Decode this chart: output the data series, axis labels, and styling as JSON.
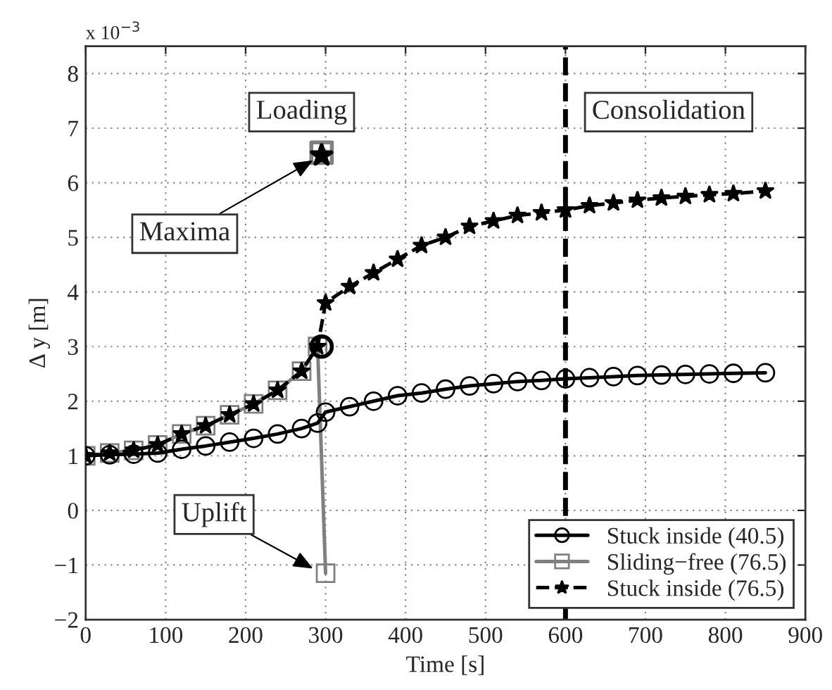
{
  "chart_data": {
    "type": "line",
    "xlabel": "Time [s]",
    "ylabel": "Δ y [m]",
    "xlim": [
      0,
      900
    ],
    "xticks": [
      0,
      100,
      200,
      300,
      400,
      500,
      600,
      700,
      800,
      900
    ],
    "ylim": [
      -2,
      8.5
    ],
    "yticks": [
      -2,
      -1,
      0,
      1,
      2,
      3,
      4,
      5,
      6,
      7,
      8
    ],
    "grid": true,
    "legend": "bottom right",
    "series": [
      {
        "name": "Stuck inside (40.5)",
        "color": "#000000",
        "marker": "circle",
        "line_style": "solid",
        "x": [
          0,
          30,
          60,
          90,
          120,
          150,
          180,
          210,
          240,
          270,
          290,
          300,
          330,
          360,
          390,
          420,
          450,
          480,
          510,
          540,
          570,
          600,
          630,
          660,
          690,
          720,
          750,
          780,
          810,
          850
        ],
        "values": [
          1.0,
          1.02,
          1.03,
          1.05,
          1.12,
          1.18,
          1.25,
          1.32,
          1.4,
          1.5,
          1.6,
          1.8,
          1.9,
          2.0,
          2.1,
          2.15,
          2.22,
          2.28,
          2.32,
          2.36,
          2.38,
          2.41,
          2.43,
          2.45,
          2.47,
          2.48,
          2.49,
          2.5,
          2.51,
          2.52
        ]
      },
      {
        "name": "Sliding−free (76.5)",
        "color": "#808080",
        "marker": "square",
        "line_style": "solid",
        "x": [
          0,
          30,
          60,
          90,
          120,
          150,
          180,
          210,
          240,
          270,
          290,
          300
        ],
        "values": [
          1.0,
          1.05,
          1.1,
          1.2,
          1.4,
          1.55,
          1.75,
          1.95,
          2.2,
          2.55,
          3.0,
          -1.15
        ]
      },
      {
        "name": "Stuck inside (76.5)",
        "color": "#000000",
        "marker": "star",
        "line_style": "dashed",
        "x": [
          0,
          30,
          60,
          90,
          120,
          150,
          180,
          210,
          240,
          270,
          290,
          300,
          330,
          360,
          390,
          420,
          450,
          480,
          510,
          540,
          570,
          600,
          630,
          660,
          690,
          720,
          750,
          780,
          810,
          850
        ],
        "values": [
          1.0,
          1.05,
          1.1,
          1.2,
          1.4,
          1.55,
          1.75,
          1.95,
          2.2,
          2.55,
          3.0,
          3.8,
          4.1,
          4.35,
          4.6,
          4.85,
          5.0,
          5.2,
          5.3,
          5.4,
          5.45,
          5.5,
          5.58,
          5.63,
          5.68,
          5.72,
          5.75,
          5.78,
          5.8,
          5.85
        ]
      },
      {
        "type": "scatter",
        "color": "#000000",
        "marker": "circle",
        "x": [
          295
        ],
        "values": [
          3.0
        ]
      },
      {
        "type": "scatter",
        "color": "#808080",
        "marker": "square",
        "x": [
          295
        ],
        "values": [
          6.55
        ]
      },
      {
        "type": "scatter",
        "color": "#000000",
        "marker": "star",
        "x": [
          295
        ],
        "values": [
          6.5
        ]
      }
    ],
    "ref_lines": [
      {
        "axis": "x",
        "value": 600,
        "color": "#000000",
        "line_style": "dashed"
      }
    ],
    "annotations": [
      "x 10$^{−3}$",
      "Loading",
      "Consolidation",
      {
        "text": "Maxima",
        "x": 295,
        "y": 6.5
      },
      {
        "text": "Uplift",
        "x": 295,
        "y": -1.15
      }
    ]
  }
}
